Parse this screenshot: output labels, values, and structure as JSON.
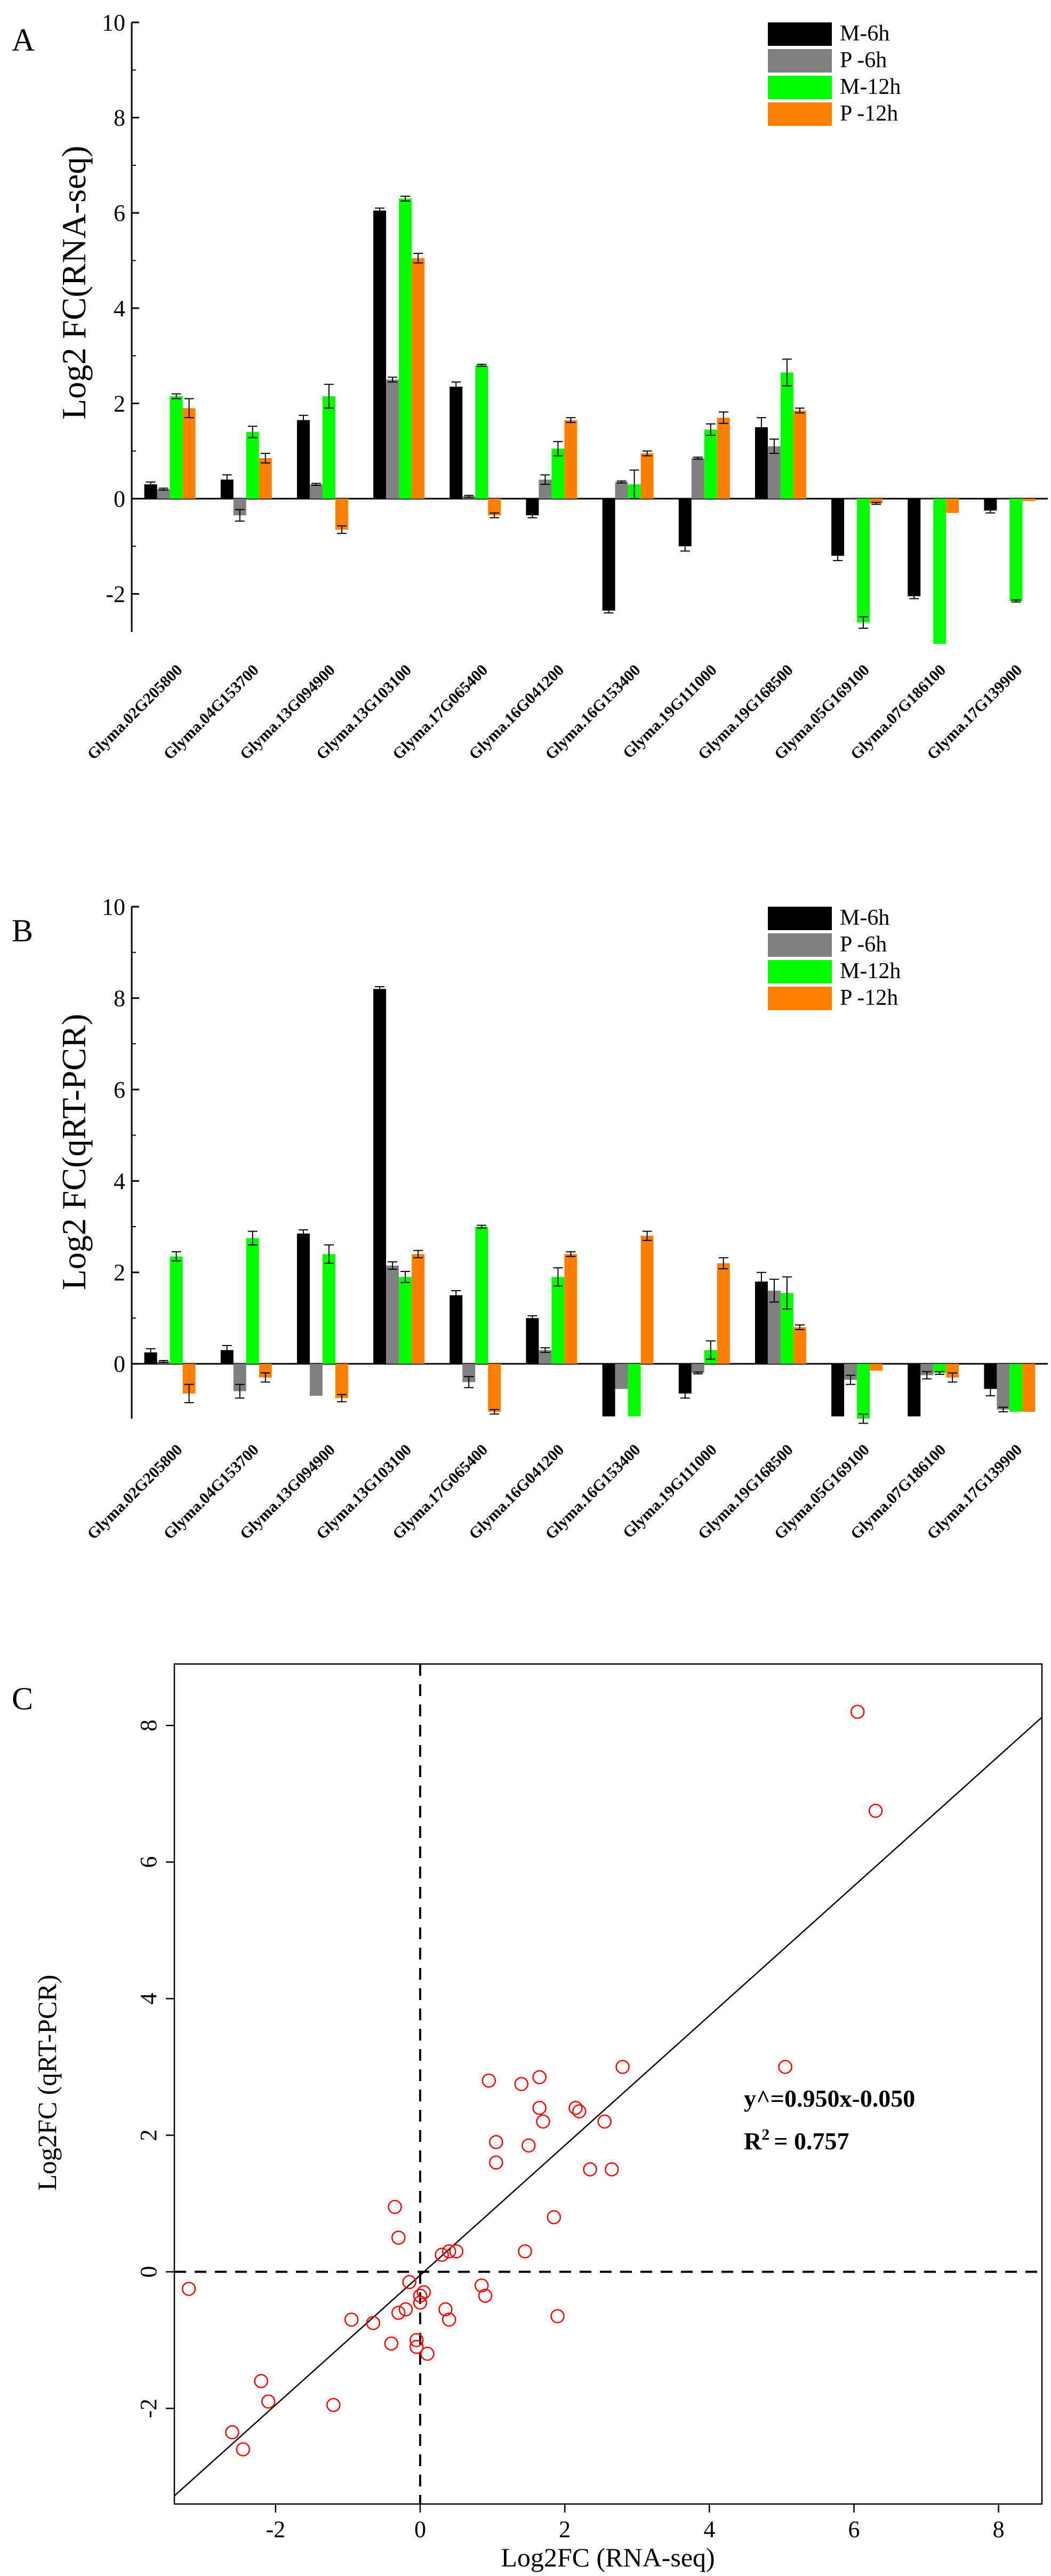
{
  "chart_data": [
    {
      "type": "bar",
      "panel_label": "A",
      "ylabel": "Log2 FC(RNA-seq)",
      "ylim": [
        -2.8,
        10
      ],
      "yticks": [
        -2,
        0,
        2,
        4,
        6,
        8,
        10
      ],
      "categories": [
        "Glyma.02G205800",
        "Glyma.04G153700",
        "Glyma.13G094900",
        "Glyma.13G103100",
        "Glyma.17G065400",
        "Glyma.16G041200",
        "Glyma.16G153400",
        "Glyma.19G111000",
        "Glyma.19G168500",
        "Glyma.05G169100",
        "Glyma.07G186100",
        "Glyma.17G139900"
      ],
      "series": [
        {
          "name": "M-6h",
          "color": "#000000",
          "values": [
            0.3,
            0.4,
            1.65,
            6.05,
            2.35,
            -0.35,
            -2.35,
            -1.0,
            1.5,
            -1.2,
            -2.05,
            -0.25
          ]
        },
        {
          "name": "P -6h",
          "color": "#808080",
          "values": [
            0.2,
            -0.35,
            0.3,
            2.5,
            0.05,
            0.4,
            0.35,
            0.85,
            1.1,
            0.0,
            0.0,
            0.0
          ]
        },
        {
          "name": "M-12h",
          "color": "#00ff00",
          "values": [
            2.15,
            1.4,
            2.15,
            6.3,
            2.8,
            1.05,
            0.3,
            1.45,
            2.65,
            -2.6,
            -3.05,
            -2.15
          ]
        },
        {
          "name": "P -12h",
          "color": "#ff8000",
          "values": [
            1.9,
            0.85,
            -0.65,
            5.05,
            -0.35,
            1.65,
            0.95,
            1.7,
            1.85,
            -0.1,
            -0.3,
            -0.05
          ]
        }
      ],
      "errors": [
        [
          0.05,
          0.1,
          0.1,
          0.05,
          0.1,
          0.05,
          0.05,
          0.1,
          0.2,
          0.1,
          0.05,
          0.05
        ],
        [
          0.02,
          0.12,
          0.02,
          0.05,
          0.02,
          0.1,
          0.02,
          0.02,
          0.15,
          0.0,
          0.0,
          0.0
        ],
        [
          0.05,
          0.12,
          0.25,
          0.05,
          0.02,
          0.15,
          0.3,
          0.12,
          0.28,
          0.12,
          0.0,
          0.02
        ],
        [
          0.2,
          0.1,
          0.08,
          0.1,
          0.05,
          0.05,
          0.05,
          0.12,
          0.05,
          0.02,
          0.0,
          0.0
        ]
      ]
    },
    {
      "type": "bar",
      "panel_label": "B",
      "ylabel": "Log2 FC(qRT-PCR)",
      "ylim": [
        -1.2,
        10
      ],
      "yticks": [
        0,
        2,
        4,
        6,
        8,
        10
      ],
      "categories": [
        "Glyma.02G205800",
        "Glyma.04G153700",
        "Glyma.13G094900",
        "Glyma.13G103100",
        "Glyma.17G065400",
        "Glyma.16G041200",
        "Glyma.16G153400",
        "Glyma.19G111000",
        "Glyma.19G168500",
        "Glyma.05G169100",
        "Glyma.07G186100",
        "Glyma.17G139900"
      ],
      "series": [
        {
          "name": "M-6h",
          "color": "#000000",
          "values": [
            0.25,
            0.3,
            2.85,
            8.2,
            1.5,
            1.0,
            -1.15,
            -0.65,
            1.8,
            -1.15,
            -1.15,
            -0.55
          ]
        },
        {
          "name": "P -6h",
          "color": "#808080",
          "values": [
            0.05,
            -0.6,
            -0.7,
            2.15,
            -0.4,
            0.3,
            -0.55,
            -0.2,
            1.6,
            -0.35,
            -0.25,
            -1.0
          ]
        },
        {
          "name": "M-12h",
          "color": "#00ff00",
          "values": [
            2.35,
            2.75,
            2.4,
            1.9,
            3.0,
            1.9,
            -1.15,
            0.3,
            1.55,
            -1.2,
            -0.2,
            -1.05
          ]
        },
        {
          "name": "P -12h",
          "color": "#ff8000",
          "values": [
            -0.65,
            -0.3,
            -0.75,
            2.4,
            -1.05,
            2.4,
            2.8,
            2.2,
            0.8,
            -0.15,
            -0.3,
            -1.05
          ]
        }
      ],
      "errors": [
        [
          0.08,
          0.1,
          0.08,
          0.05,
          0.1,
          0.05,
          0.0,
          0.1,
          0.2,
          0.0,
          0.0,
          0.15
        ],
        [
          0.02,
          0.15,
          0.0,
          0.08,
          0.12,
          0.05,
          0.0,
          0.02,
          0.25,
          0.1,
          0.08,
          0.05
        ],
        [
          0.1,
          0.15,
          0.2,
          0.12,
          0.03,
          0.2,
          0.0,
          0.2,
          0.35,
          0.1,
          0.03,
          0.0
        ],
        [
          0.2,
          0.1,
          0.08,
          0.08,
          0.05,
          0.05,
          0.1,
          0.12,
          0.05,
          0.0,
          0.1,
          0.0
        ]
      ]
    },
    {
      "type": "scatter",
      "panel_label": "C",
      "xlabel": "Log2FC (RNA-seq)",
      "ylabel": "Log2FC (qRT-PCR)",
      "xlim": [
        -3.4,
        8.6
      ],
      "ylim": [
        -3.4,
        8.9
      ],
      "xticks": [
        -2,
        0,
        2,
        4,
        6,
        8
      ],
      "yticks": [
        -2,
        0,
        2,
        4,
        6,
        8
      ],
      "marker_color": "#ff0000",
      "fit": {
        "slope": 0.95,
        "intercept": -0.05,
        "equation": "y^=0.950x-0.050",
        "r2_label": "R",
        "r2_sup": "2",
        "r2_value": "= 0.757"
      },
      "points": [
        [
          -3.2,
          -0.25
        ],
        [
          -2.6,
          -2.35
        ],
        [
          -2.45,
          -2.6
        ],
        [
          -2.2,
          -1.6
        ],
        [
          -2.1,
          -1.9
        ],
        [
          -1.2,
          -1.95
        ],
        [
          -0.95,
          -0.7
        ],
        [
          -0.65,
          -0.75
        ],
        [
          -0.4,
          -1.05
        ],
        [
          -0.35,
          0.95
        ],
        [
          -0.3,
          0.5
        ],
        [
          -0.3,
          -0.6
        ],
        [
          -0.2,
          -0.55
        ],
        [
          -0.15,
          -0.15
        ],
        [
          -0.05,
          -1.0
        ],
        [
          -0.05,
          -1.1
        ],
        [
          0.0,
          -0.35
        ],
        [
          0.0,
          -0.45
        ],
        [
          0.05,
          -0.3
        ],
        [
          0.1,
          -1.2
        ],
        [
          0.3,
          0.25
        ],
        [
          0.35,
          -0.55
        ],
        [
          0.4,
          -0.7
        ],
        [
          0.4,
          0.3
        ],
        [
          0.5,
          0.3
        ],
        [
          0.85,
          -0.2
        ],
        [
          0.9,
          -0.35
        ],
        [
          0.95,
          2.8
        ],
        [
          1.05,
          1.9
        ],
        [
          1.05,
          1.6
        ],
        [
          1.4,
          2.75
        ],
        [
          1.45,
          0.3
        ],
        [
          1.5,
          1.85
        ],
        [
          1.65,
          2.85
        ],
        [
          1.65,
          2.4
        ],
        [
          1.7,
          2.2
        ],
        [
          1.85,
          0.8
        ],
        [
          1.9,
          -0.65
        ],
        [
          2.15,
          2.4
        ],
        [
          2.2,
          2.35
        ],
        [
          2.35,
          1.5
        ],
        [
          2.55,
          2.2
        ],
        [
          2.65,
          1.5
        ],
        [
          2.8,
          3.0
        ],
        [
          5.05,
          3.0
        ],
        [
          6.05,
          8.2
        ],
        [
          6.3,
          6.75
        ]
      ]
    }
  ]
}
